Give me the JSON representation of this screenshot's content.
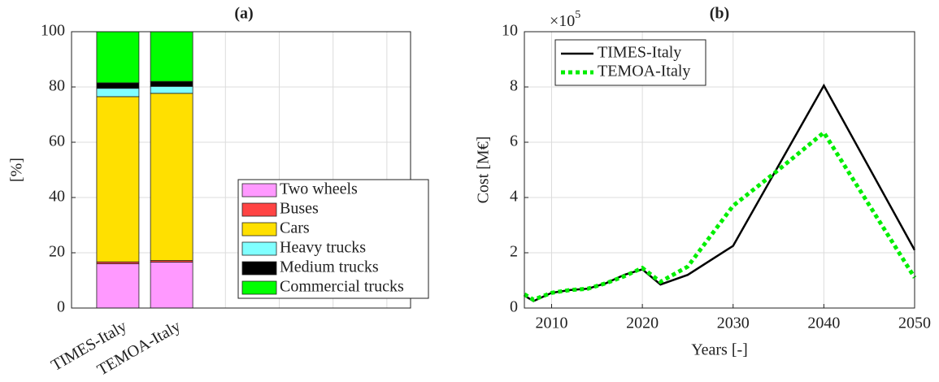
{
  "chart_data": [
    {
      "type": "bar",
      "stacked": true,
      "title": "(a)",
      "ylabel": "[%]",
      "categories": [
        "TIMES-Italy",
        "TEMOA-Italy",
        null,
        null,
        null,
        null
      ],
      "xlim": [
        0.14,
        6.44
      ],
      "series": [
        {
          "name": "Two wheels",
          "color": "#ff99ff",
          "values": [
            16,
            16.6,
            0,
            0,
            0,
            0
          ]
        },
        {
          "name": "Buses",
          "color": "#ff4444",
          "values": [
            0.7,
            0.6,
            0,
            0,
            0,
            0
          ]
        },
        {
          "name": "Cars",
          "color": "#ffe000",
          "values": [
            59.8,
            60.5,
            0,
            0,
            0,
            0
          ]
        },
        {
          "name": "Heavy trucks",
          "color": "#80ffff",
          "values": [
            3,
            2.5,
            0,
            0,
            0,
            0
          ]
        },
        {
          "name": "Medium trucks",
          "color": "#000000",
          "values": [
            2,
            1.8,
            0,
            0,
            0,
            0
          ]
        },
        {
          "name": "Commercial trucks",
          "color": "#00ff00",
          "values": [
            18.5,
            18,
            0,
            0,
            0,
            0
          ]
        }
      ],
      "ylim": [
        0,
        100
      ],
      "yticks": [
        0,
        20,
        40,
        60,
        80,
        100
      ],
      "grid": true,
      "legend": "lower right"
    },
    {
      "type": "line",
      "title": "(b)",
      "xlabel": "Years [-]",
      "ylabel": "Cost [M€]",
      "yscale_label": {
        "base": "×10",
        "exponent": "5"
      },
      "series": [
        {
          "name": "TIMES-Italy",
          "color": "#000000",
          "style": "solid",
          "x": [
            2007,
            2008,
            2010,
            2012,
            2014,
            2016,
            2018,
            2020,
            2022,
            2025,
            2030,
            2040,
            2050
          ],
          "values": [
            0.45,
            0.25,
            0.55,
            0.65,
            0.7,
            0.9,
            1.2,
            1.4,
            0.85,
            1.2,
            2.25,
            8.05,
            2.1
          ]
        },
        {
          "name": "TEMOA-Italy",
          "color": "#00ee00",
          "style": "dotted",
          "x": [
            2007,
            2008,
            2010,
            2012,
            2014,
            2016,
            2018,
            2020,
            2022,
            2025,
            2030,
            2035,
            2040,
            2050
          ],
          "values": [
            0.5,
            0.3,
            0.55,
            0.65,
            0.7,
            0.9,
            1.15,
            1.45,
            0.95,
            1.5,
            3.7,
            5.0,
            6.35,
            1.1
          ]
        }
      ],
      "xlim": [
        2007,
        2050
      ],
      "xticks": [
        2010,
        2020,
        2030,
        2040,
        2050
      ],
      "ylim": [
        0,
        10
      ],
      "yticks": [
        0,
        2,
        4,
        6,
        8,
        10
      ],
      "grid": true,
      "legend": "upper left"
    }
  ]
}
